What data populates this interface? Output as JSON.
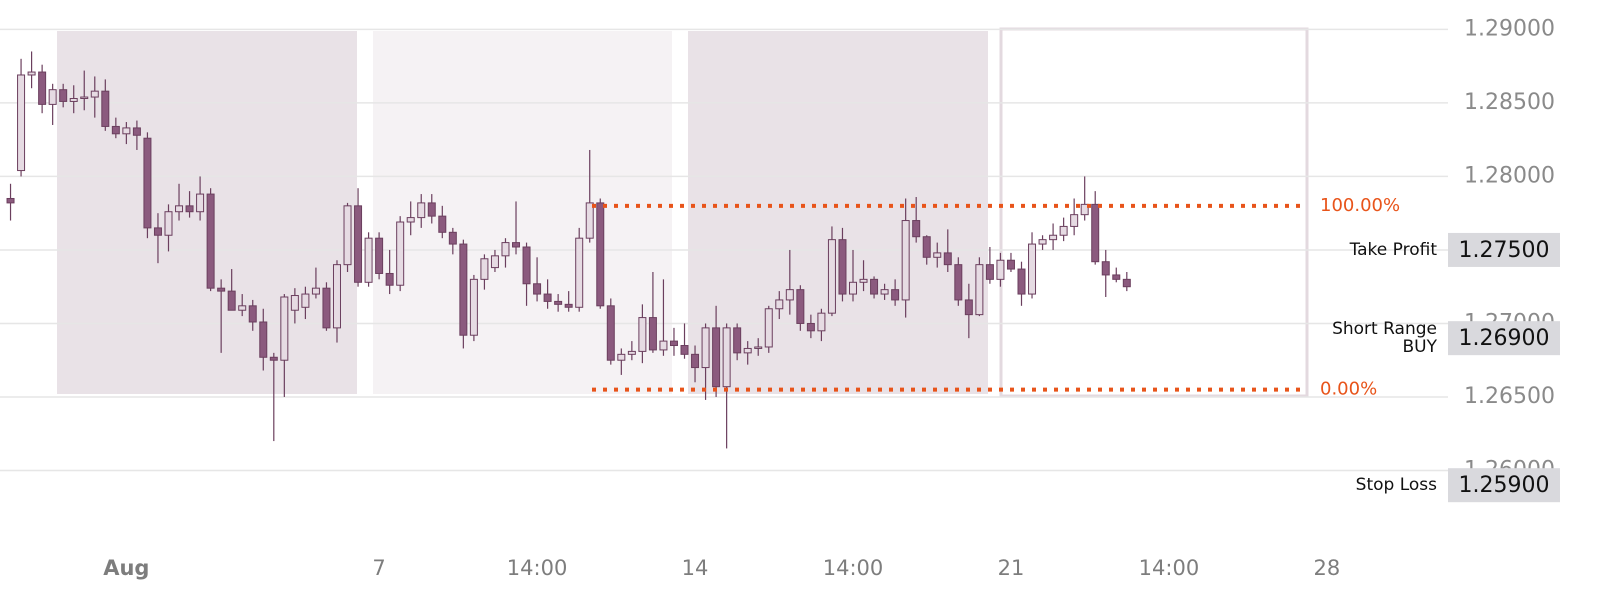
{
  "chart_data": {
    "type": "candlestick",
    "up_color": "#e6dbe3",
    "down_color": "#8b5a7e",
    "line_color": "#6b3f5e",
    "xlim": [
      -1,
      136.5
    ],
    "ylim": [
      1.255,
      1.292
    ],
    "yticks": [
      {
        "value": 1.29,
        "label": "1.29000"
      },
      {
        "value": 1.285,
        "label": "1.28500"
      },
      {
        "value": 1.28,
        "label": "1.28000"
      },
      {
        "value": 1.275,
        "label": "1.27500"
      },
      {
        "value": 1.27,
        "label": "1.27000"
      },
      {
        "value": 1.265,
        "label": "1.26500"
      },
      {
        "value": 1.26,
        "label": "1.26000"
      }
    ],
    "xticks": [
      {
        "value": 11,
        "label": "Aug"
      },
      {
        "value": 35,
        "label": "7"
      },
      {
        "value": 50,
        "label": "14:00"
      },
      {
        "value": 65,
        "label": "14"
      },
      {
        "value": 80,
        "label": "14:00"
      },
      {
        "value": 95,
        "label": "21"
      },
      {
        "value": 110,
        "label": "14:00"
      },
      {
        "value": 125,
        "label": "28"
      }
    ],
    "grid": true,
    "open": [
      1.2785,
      1.2804,
      1.2869,
      1.2871,
      1.2849,
      1.2859,
      1.2851,
      1.2853,
      1.2854,
      1.2858,
      1.2834,
      1.2829,
      1.2833,
      1.2826,
      1.2765,
      1.276,
      1.2776,
      1.278,
      1.2776,
      1.2788,
      1.2724,
      1.2722,
      1.2709,
      1.2712,
      1.2701,
      1.2677,
      1.2675,
      1.2709,
      1.2711,
      1.272,
      1.2724,
      1.2697,
      1.274,
      1.278,
      1.2728,
      1.2758,
      1.2734,
      1.2726,
      1.2769,
      1.2772,
      1.2782,
      1.2773,
      1.2762,
      1.2754,
      1.2692,
      1.273,
      1.2738,
      1.2746,
      1.2755,
      1.2752,
      1.2727,
      1.272,
      1.2715,
      1.2713,
      1.2711,
      1.2758,
      1.2782,
      1.2712,
      1.2675,
      1.2679,
      1.2681,
      1.2704,
      1.2682,
      1.2688,
      1.2685,
      1.2679,
      1.267,
      1.2697,
      1.2657,
      1.2697,
      1.268,
      1.2683,
      1.2684,
      1.271,
      1.2716,
      1.2723,
      1.27,
      1.2695,
      1.2707,
      1.2757,
      1.272,
      1.2728,
      1.273,
      1.272,
      1.2723,
      1.2716,
      1.277,
      1.2759,
      1.2745,
      1.2748,
      1.274,
      1.2716,
      1.2706,
      1.274,
      1.273,
      1.2743,
      1.2737,
      1.272,
      1.2754,
      1.2757,
      1.276,
      1.2766,
      1.2774,
      1.2781,
      1.2742,
      1.2733,
      1.273
    ],
    "high": [
      1.2795,
      1.288,
      1.2885,
      1.2876,
      1.2863,
      1.2863,
      1.2862,
      1.2872,
      1.2868,
      1.2866,
      1.284,
      1.2837,
      1.2838,
      1.283,
      1.2775,
      1.2781,
      1.2795,
      1.279,
      1.28,
      1.2792,
      1.273,
      1.2737,
      1.272,
      1.2716,
      1.271,
      1.268,
      1.272,
      1.2724,
      1.2725,
      1.2738,
      1.2728,
      1.2743,
      1.2782,
      1.2792,
      1.2762,
      1.2762,
      1.275,
      1.2773,
      1.2783,
      1.2788,
      1.2788,
      1.278,
      1.2765,
      1.2757,
      1.2733,
      1.2747,
      1.275,
      1.2758,
      1.2783,
      1.2755,
      1.2745,
      1.273,
      1.272,
      1.2722,
      1.2765,
      1.2818,
      1.2785,
      1.2717,
      1.2683,
      1.2688,
      1.2713,
      1.2735,
      1.273,
      1.2697,
      1.27,
      1.2685,
      1.27,
      1.2712,
      1.27,
      1.27,
      1.2688,
      1.269,
      1.2712,
      1.2722,
      1.275,
      1.2726,
      1.2706,
      1.271,
      1.2766,
      1.2765,
      1.275,
      1.2743,
      1.2732,
      1.2727,
      1.273,
      1.2785,
      1.2786,
      1.276,
      1.2755,
      1.2764,
      1.2745,
      1.2727,
      1.2745,
      1.2752,
      1.2748,
      1.2748,
      1.2742,
      1.2762,
      1.276,
      1.2768,
      1.2772,
      1.2785,
      1.28,
      1.279,
      1.275,
      1.2738,
      1.2735
    ],
    "low": [
      1.277,
      1.28,
      1.286,
      1.2843,
      1.2835,
      1.2847,
      1.2843,
      1.2845,
      1.284,
      1.2831,
      1.2826,
      1.2822,
      1.2818,
      1.2758,
      1.2741,
      1.2749,
      1.277,
      1.2772,
      1.277,
      1.2722,
      1.268,
      1.2709,
      1.2705,
      1.2695,
      1.2668,
      1.262,
      1.265,
      1.27,
      1.2703,
      1.2717,
      1.2695,
      1.2687,
      1.2735,
      1.2725,
      1.2725,
      1.273,
      1.272,
      1.2722,
      1.276,
      1.2765,
      1.2768,
      1.2758,
      1.2747,
      1.2683,
      1.2688,
      1.2723,
      1.2735,
      1.2738,
      1.2747,
      1.2712,
      1.2715,
      1.271,
      1.2708,
      1.2708,
      1.2708,
      1.2755,
      1.271,
      1.2672,
      1.2665,
      1.2675,
      1.2673,
      1.268,
      1.2678,
      1.2678,
      1.2676,
      1.266,
      1.2648,
      1.265,
      1.2615,
      1.2675,
      1.2672,
      1.2678,
      1.268,
      1.2703,
      1.2706,
      1.2695,
      1.269,
      1.2688,
      1.2705,
      1.2715,
      1.2715,
      1.2722,
      1.2717,
      1.2716,
      1.2712,
      1.2704,
      1.2755,
      1.274,
      1.2738,
      1.2735,
      1.2712,
      1.269,
      1.2705,
      1.2727,
      1.2725,
      1.2735,
      1.2712,
      1.2717,
      1.275,
      1.275,
      1.2756,
      1.276,
      1.277,
      1.274,
      1.2718,
      1.2728,
      1.2722
    ],
    "close": [
      1.2782,
      1.2869,
      1.2871,
      1.2849,
      1.2859,
      1.2851,
      1.2853,
      1.2854,
      1.2858,
      1.2834,
      1.2829,
      1.2833,
      1.2828,
      1.2765,
      1.276,
      1.2776,
      1.278,
      1.2776,
      1.2788,
      1.2724,
      1.2722,
      1.2709,
      1.2712,
      1.2701,
      1.2677,
      1.2675,
      1.2718,
      1.2719,
      1.272,
      1.2724,
      1.2697,
      1.274,
      1.278,
      1.2728,
      1.2758,
      1.2734,
      1.2726,
      1.2769,
      1.2772,
      1.2782,
      1.2773,
      1.2762,
      1.2754,
      1.2692,
      1.273,
      1.2744,
      1.2746,
      1.2755,
      1.2752,
      1.2727,
      1.272,
      1.2715,
      1.2713,
      1.2711,
      1.2758,
      1.2782,
      1.2712,
      1.2675,
      1.2679,
      1.2681,
      1.2704,
      1.2682,
      1.2688,
      1.2685,
      1.2679,
      1.267,
      1.2697,
      1.2657,
      1.2697,
      1.268,
      1.2683,
      1.2684,
      1.271,
      1.2716,
      1.2723,
      1.27,
      1.2695,
      1.2707,
      1.2757,
      1.272,
      1.2728,
      1.273,
      1.272,
      1.2723,
      1.2716,
      1.277,
      1.2759,
      1.2745,
      1.2748,
      1.274,
      1.2716,
      1.2706,
      1.274,
      1.273,
      1.2743,
      1.2737,
      1.272,
      1.2754,
      1.2757,
      1.276,
      1.2766,
      1.2774,
      1.2781,
      1.2742,
      1.2733,
      1.273,
      1.2725
    ],
    "levels": [
      {
        "label": "100.00%",
        "value": 1.278,
        "color": "#e8541a"
      },
      {
        "label": "0.00%",
        "value": 1.2655,
        "color": "#e8541a"
      }
    ],
    "price_labels": [
      {
        "name": [
          "Take Profit"
        ],
        "price": {
          "value": 1.275,
          "label": "1.27500"
        }
      },
      {
        "name": [
          "Short Range",
          "BUY"
        ],
        "price": {
          "value": 1.269,
          "label": "1.26900"
        }
      },
      {
        "name": [
          "Stop Loss"
        ],
        "price": {
          "value": 1.259,
          "label": "1.25900"
        }
      }
    ]
  }
}
